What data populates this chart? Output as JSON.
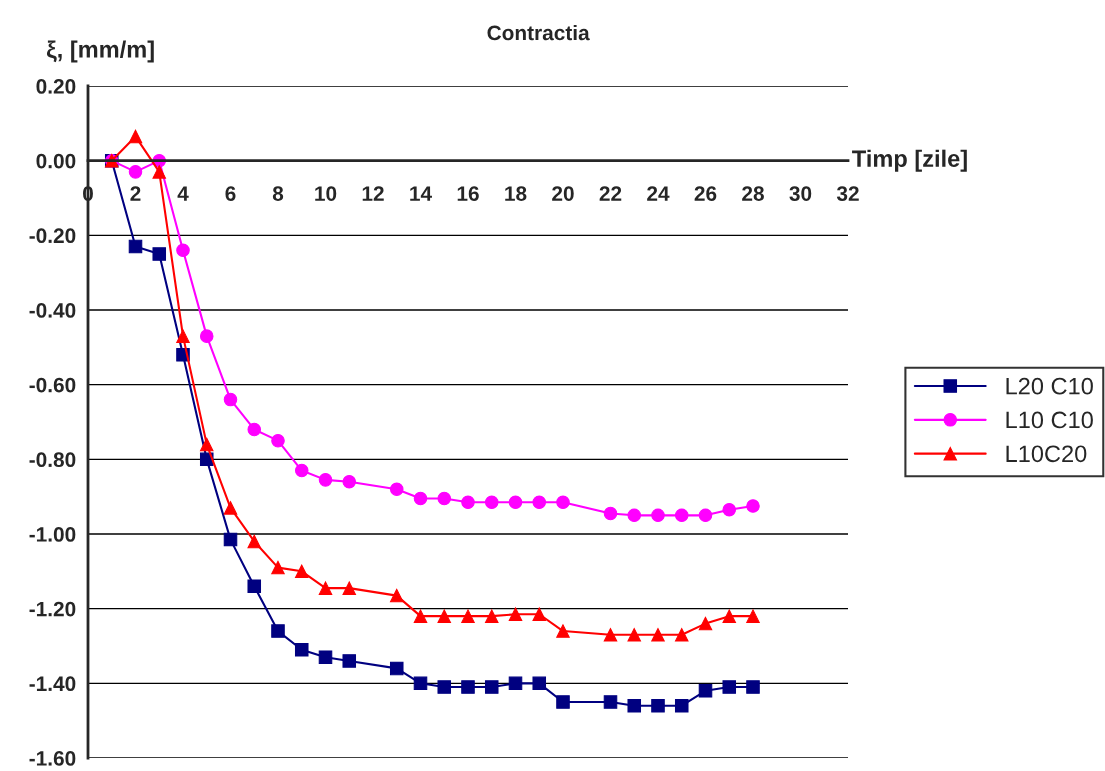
{
  "chart_data": {
    "type": "line",
    "title": "Contractia",
    "xlabel": "Timp [zile]",
    "ylabel": "ξ, [mm/m]",
    "x": [
      1,
      2,
      3,
      4,
      5,
      6,
      7,
      8,
      9,
      10,
      11,
      13,
      14,
      15,
      16,
      17,
      18,
      19,
      20,
      22,
      23,
      24,
      25,
      26,
      27,
      28
    ],
    "series": [
      {
        "name": "L20 C10",
        "color": "#000080",
        "marker": "square",
        "values": [
          0,
          -0.23,
          -0.25,
          -0.52,
          -0.8,
          -1.015,
          -1.14,
          -1.26,
          -1.31,
          -1.33,
          -1.34,
          -1.36,
          -1.4,
          -1.41,
          -1.41,
          -1.41,
          -1.4,
          -1.4,
          -1.45,
          -1.45,
          -1.46,
          -1.46,
          -1.46,
          -1.42,
          -1.41,
          -1.41
        ]
      },
      {
        "name": "L10 C10",
        "color": "#ff00ff",
        "marker": "circle",
        "values": [
          0,
          -0.03,
          0,
          -0.24,
          -0.47,
          -0.64,
          -0.72,
          -0.75,
          -0.83,
          -0.855,
          -0.86,
          -0.88,
          -0.905,
          -0.905,
          -0.915,
          -0.915,
          -0.915,
          -0.915,
          -0.915,
          -0.945,
          -0.95,
          -0.95,
          -0.95,
          -0.95,
          -0.935,
          -0.925
        ]
      },
      {
        "name": "L10C20",
        "color": "#ff0000",
        "marker": "triangle",
        "values": [
          0,
          0.065,
          -0.03,
          -0.47,
          -0.76,
          -0.93,
          -1.02,
          -1.09,
          -1.1,
          -1.145,
          -1.145,
          -1.165,
          -1.22,
          -1.22,
          -1.22,
          -1.22,
          -1.215,
          -1.215,
          -1.26,
          -1.27,
          -1.27,
          -1.27,
          -1.27,
          -1.24,
          -1.22,
          -1.22
        ]
      }
    ],
    "xlim": [
      0,
      32
    ],
    "xticks": [
      0,
      2,
      4,
      6,
      8,
      10,
      12,
      14,
      16,
      18,
      20,
      22,
      24,
      26,
      28,
      30,
      32
    ],
    "ylim": [
      -1.6,
      0.2
    ],
    "yticks": [
      {
        "value": -1.6,
        "label": "-1.60"
      },
      {
        "value": -1.4,
        "label": "-1.40"
      },
      {
        "value": -1.2,
        "label": "-1.20"
      },
      {
        "value": -1.0,
        "label": "-1.00"
      },
      {
        "value": -0.8,
        "label": "-0.80"
      },
      {
        "value": -0.6,
        "label": "-0.60"
      },
      {
        "value": -0.4,
        "label": "-0.40"
      },
      {
        "value": -0.2,
        "label": "-0.20"
      },
      {
        "value": 0.0,
        "label": "0.00"
      },
      {
        "value": 0.2,
        "label": "0.20"
      }
    ],
    "grid": "y",
    "legend": "right",
    "line_style": "solid"
  }
}
